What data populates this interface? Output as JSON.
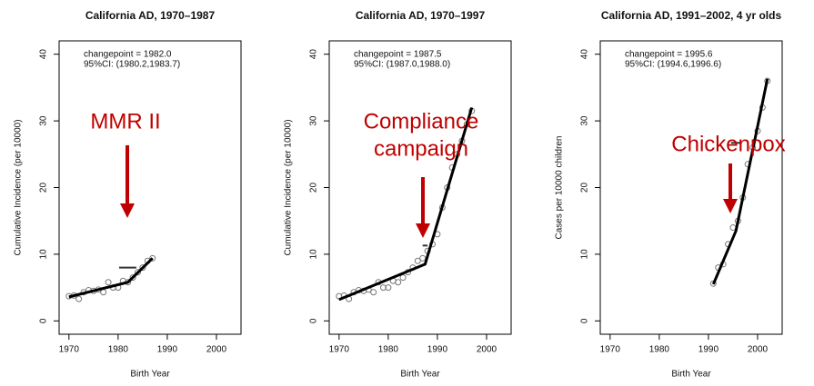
{
  "chart_data": [
    {
      "type": "scatter",
      "title": "California AD, 1970–1987",
      "x_label": "Birth Year",
      "y_label": "Cumulative Incidence (per 10000)",
      "annotation": [
        "MMR II"
      ],
      "stats": [
        "changepoint = 1982.0",
        "95%CI: (1980.2,1983.7)"
      ],
      "x": [
        1970,
        1971,
        1972,
        1973,
        1974,
        1975,
        1976,
        1977,
        1978,
        1979,
        1980,
        1981,
        1982,
        1983,
        1984,
        1985,
        1986,
        1987
      ],
      "values": [
        3.7,
        3.8,
        3.3,
        4.3,
        4.6,
        4.5,
        4.7,
        4.3,
        5.8,
        5.0,
        5.0,
        6.0,
        5.8,
        6.5,
        7.3,
        8.0,
        9.0,
        9.4
      ],
      "fit": {
        "x": [
          1970,
          1982,
          1987
        ],
        "values": [
          3.6,
          5.8,
          9.4
        ]
      },
      "ci": {
        "x": [
          1980.2,
          1983.7
        ],
        "y": 8
      },
      "xlim": [
        1968,
        2005
      ],
      "ylim": [
        -2,
        42
      ],
      "xticks": [
        1970,
        1980,
        1990,
        2000
      ],
      "yticks": [
        0,
        10,
        20,
        30,
        40
      ]
    },
    {
      "type": "scatter",
      "title": "California AD, 1970–1997",
      "x_label": "Birth Year",
      "y_label": "Cumulative Incidence (per 10000)",
      "annotation": [
        "Compliance",
        "campaign"
      ],
      "stats": [
        "changepoint = 1987.5",
        "95%CI: (1987.0,1988.0)"
      ],
      "x": [
        1970,
        1971,
        1972,
        1973,
        1974,
        1975,
        1976,
        1977,
        1978,
        1979,
        1980,
        1981,
        1982,
        1983,
        1984,
        1985,
        1986,
        1987,
        1988,
        1989,
        1990,
        1991,
        1992,
        1993,
        1994,
        1995,
        1996,
        1997
      ],
      "values": [
        3.7,
        3.8,
        3.3,
        4.3,
        4.6,
        4.5,
        4.7,
        4.3,
        5.8,
        5.0,
        5.0,
        6.0,
        5.8,
        6.5,
        7.3,
        8.0,
        9.0,
        9.4,
        10.5,
        11.5,
        13.0,
        17.0,
        20.0,
        23.0,
        25.0,
        27.0,
        29.5,
        31.5
      ],
      "fit": {
        "x": [
          1970,
          1987.5,
          1997
        ],
        "values": [
          3.2,
          8.5,
          32
        ]
      },
      "ci": {
        "x": [
          1987.0,
          1988.0
        ],
        "y": 11.3
      },
      "xlim": [
        1968,
        2005
      ],
      "ylim": [
        -2,
        42
      ],
      "xticks": [
        1970,
        1980,
        1990,
        2000
      ],
      "yticks": [
        0,
        10,
        20,
        30,
        40
      ]
    },
    {
      "type": "scatter",
      "title": "California AD, 1991–2002, 4 yr olds",
      "x_label": "Birth Year",
      "y_label": "Cases per 10000 children",
      "annotation": [
        "Chickenpox"
      ],
      "stats": [
        "changepoint = 1995.6",
        "95%CI: (1994.6,1996.6)"
      ],
      "x": [
        1991,
        1992,
        1993,
        1994,
        1995,
        1996,
        1997,
        1998,
        1999,
        2000,
        2001,
        2002
      ],
      "values": [
        5.6,
        8.0,
        8.5,
        11.5,
        14.0,
        15.0,
        18.5,
        23.5,
        26.0,
        28.5,
        32.0,
        36.0
      ],
      "fit": {
        "x": [
          1991,
          1995.6,
          2002
        ],
        "values": [
          5.5,
          13.5,
          36.3
        ]
      },
      "ci": {
        "x": [
          1994.6,
          1996.6
        ],
        "y": 26.7
      },
      "xlim": [
        1968,
        2005
      ],
      "ylim": [
        -2,
        42
      ],
      "xticks": [
        1970,
        1980,
        1990,
        2000
      ],
      "yticks": [
        0,
        10,
        20,
        30,
        40
      ]
    }
  ]
}
